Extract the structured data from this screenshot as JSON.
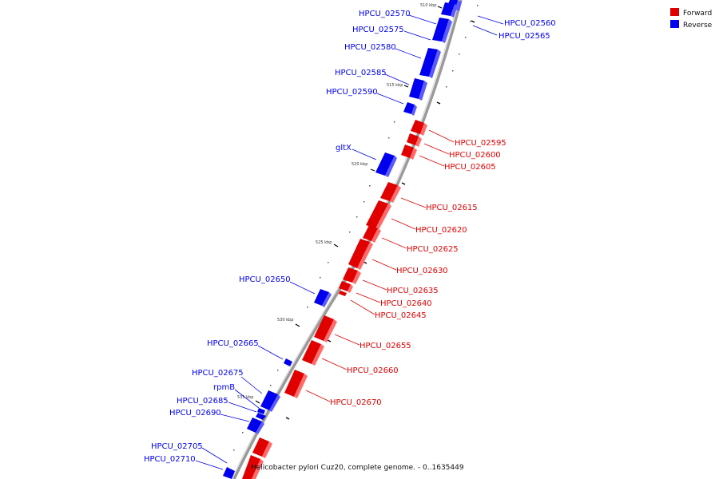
{
  "caption": "Helicobacter pylori Cuz20, complete genome. - 0..1635449",
  "legend": [
    {
      "label": "Forward",
      "color": "#e00000"
    },
    {
      "label": "Reverse",
      "color": "#0000ee"
    }
  ],
  "colors": {
    "forward": "#e00000",
    "reverse": "#0000ee",
    "backbone": "#9a9a9a"
  },
  "kbp_marks": [
    "510 kbp",
    "515 kbp",
    "520 kbp",
    "525 kbp",
    "530 kbp",
    "535 kbp"
  ],
  "genes": [
    {
      "name": "HPCU_02560",
      "strand": "reverse"
    },
    {
      "name": "HPCU_02565",
      "strand": "reverse"
    },
    {
      "name": "HPCU_02570",
      "strand": "reverse"
    },
    {
      "name": "HPCU_02575",
      "strand": "reverse"
    },
    {
      "name": "HPCU_02580",
      "strand": "reverse"
    },
    {
      "name": "HPCU_02585",
      "strand": "reverse"
    },
    {
      "name": "HPCU_02590",
      "strand": "reverse"
    },
    {
      "name": "HPCU_02595",
      "strand": "forward"
    },
    {
      "name": "HPCU_02600",
      "strand": "forward"
    },
    {
      "name": "HPCU_02605",
      "strand": "forward"
    },
    {
      "name": "gltX",
      "strand": "reverse"
    },
    {
      "name": "HPCU_02615",
      "strand": "forward"
    },
    {
      "name": "HPCU_02620",
      "strand": "forward"
    },
    {
      "name": "HPCU_02625",
      "strand": "forward"
    },
    {
      "name": "HPCU_02630",
      "strand": "forward"
    },
    {
      "name": "HPCU_02635",
      "strand": "forward"
    },
    {
      "name": "HPCU_02640",
      "strand": "forward"
    },
    {
      "name": "HPCU_02645",
      "strand": "forward"
    },
    {
      "name": "HPCU_02650",
      "strand": "reverse"
    },
    {
      "name": "HPCU_02655",
      "strand": "forward"
    },
    {
      "name": "HPCU_02660",
      "strand": "forward"
    },
    {
      "name": "HPCU_02665",
      "strand": "reverse"
    },
    {
      "name": "HPCU_02670",
      "strand": "forward"
    },
    {
      "name": "HPCU_02675",
      "strand": "reverse"
    },
    {
      "name": "rpmB",
      "strand": "reverse"
    },
    {
      "name": "HPCU_02685",
      "strand": "reverse"
    },
    {
      "name": "HPCU_02690",
      "strand": "reverse"
    },
    {
      "name": "HPCU_02705",
      "strand": "reverse"
    },
    {
      "name": "HPCU_02710",
      "strand": "reverse"
    }
  ]
}
